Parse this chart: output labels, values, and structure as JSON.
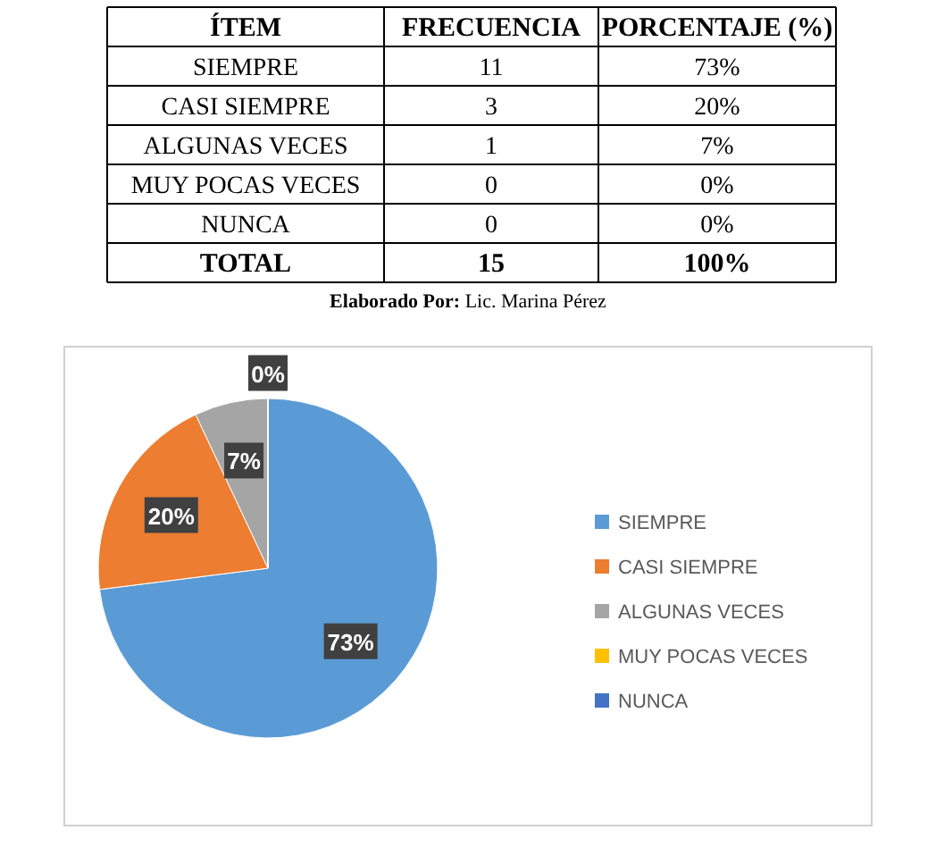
{
  "chart_data": [
    {
      "type": "other",
      "xlabel": "ÍTEM",
      "categories": [
        "SIEMPRE",
        "CASI SIEMPRE",
        "ALGUNAS VECES",
        "MUY POCAS VECES",
        "NUNCA",
        "TOTAL"
      ],
      "series": [
        {
          "name": "FRECUENCIA",
          "values": [
            11,
            3,
            1,
            0,
            0,
            15
          ],
          "value_labels": [
            "11",
            "3",
            "1",
            "0",
            "0",
            "15"
          ]
        },
        {
          "name": "PORCENTAJE (%)",
          "values": [
            73,
            20,
            7,
            0,
            0,
            100
          ],
          "value_labels": [
            "73%",
            "20%",
            "7%",
            "0%",
            "0%",
            "100%"
          ]
        }
      ],
      "annotations": [
        "Elaborado Por: Lic. Marina Pérez"
      ]
    },
    {
      "type": "pie",
      "categories": [
        "SIEMPRE",
        "CASI SIEMPRE",
        "ALGUNAS VECES",
        "MUY POCAS VECES",
        "NUNCA"
      ],
      "values": [
        73,
        20,
        7,
        0,
        0
      ],
      "colors": [
        "#5b9bd5",
        "#ed7d31",
        "#a5a5a5",
        "#ffc000",
        "#4472c4"
      ],
      "value_labels": [
        "73%",
        "20%",
        "7%",
        "0%",
        null
      ],
      "legend": "right"
    }
  ]
}
